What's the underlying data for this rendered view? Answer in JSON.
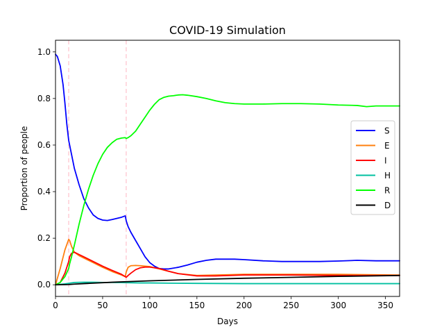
{
  "chart_data": {
    "type": "line",
    "title": "COVID-19 Simulation",
    "xlabel": "Days",
    "ylabel": "Proportion of people",
    "xlim": [
      0,
      365
    ],
    "ylim": [
      -0.05,
      1.05
    ],
    "xticks": [
      0,
      50,
      100,
      150,
      200,
      250,
      300,
      350
    ],
    "xtick_labels": [
      "0",
      "50",
      "100",
      "150",
      "200",
      "250",
      "300",
      "350"
    ],
    "yticks": [
      0.0,
      0.2,
      0.4,
      0.6,
      0.8,
      1.0
    ],
    "ytick_labels": [
      "0.0",
      "0.2",
      "0.4",
      "0.6",
      "0.8",
      "1.0"
    ],
    "grid": false,
    "legend_position": "right",
    "vlines": [
      {
        "x": 14,
        "style": "dashed",
        "color": "#ffc0cb"
      },
      {
        "x": 75,
        "style": "dashed",
        "color": "#ffc0cb"
      }
    ],
    "series": [
      {
        "name": "S",
        "color": "#0000ff",
        "x": [
          0,
          2,
          5,
          8,
          10,
          12,
          14,
          15,
          18,
          20,
          25,
          30,
          35,
          40,
          45,
          50,
          55,
          60,
          65,
          70,
          74,
          75,
          77,
          80,
          85,
          90,
          95,
          100,
          105,
          110,
          115,
          120,
          130,
          140,
          150,
          160,
          170,
          180,
          190,
          200,
          220,
          240,
          260,
          280,
          300,
          320,
          340,
          350,
          365
        ],
        "y": [
          0.99,
          0.98,
          0.94,
          0.86,
          0.78,
          0.69,
          0.62,
          0.6,
          0.54,
          0.5,
          0.43,
          0.37,
          0.33,
          0.3,
          0.285,
          0.278,
          0.276,
          0.28,
          0.285,
          0.29,
          0.296,
          0.275,
          0.25,
          0.225,
          0.19,
          0.155,
          0.12,
          0.095,
          0.08,
          0.07,
          0.068,
          0.068,
          0.075,
          0.085,
          0.097,
          0.105,
          0.11,
          0.11,
          0.11,
          0.108,
          0.103,
          0.1,
          0.1,
          0.1,
          0.102,
          0.105,
          0.103,
          0.103,
          0.103
        ]
      },
      {
        "name": "E",
        "color": "#ff7f0e",
        "x": [
          0,
          5,
          10,
          14,
          15,
          17,
          20,
          25,
          30,
          40,
          50,
          60,
          70,
          74,
          75,
          77,
          80,
          85,
          90,
          100,
          110,
          120,
          130,
          150,
          170,
          200,
          250,
          300,
          365
        ],
        "y": [
          0.0,
          0.07,
          0.15,
          0.195,
          0.19,
          0.165,
          0.14,
          0.125,
          0.115,
          0.095,
          0.075,
          0.057,
          0.042,
          0.035,
          0.055,
          0.075,
          0.082,
          0.083,
          0.082,
          0.078,
          0.068,
          0.058,
          0.048,
          0.04,
          0.042,
          0.045,
          0.045,
          0.045,
          0.042
        ]
      },
      {
        "name": "I",
        "color": "#ff0000",
        "x": [
          0,
          5,
          10,
          14,
          15,
          17,
          20,
          25,
          30,
          40,
          50,
          60,
          70,
          74,
          75,
          77,
          80,
          85,
          90,
          95,
          100,
          110,
          120,
          130,
          150,
          170,
          200,
          250,
          300,
          365
        ],
        "y": [
          0.0,
          0.01,
          0.05,
          0.1,
          0.12,
          0.135,
          0.14,
          0.13,
          0.12,
          0.1,
          0.08,
          0.062,
          0.045,
          0.035,
          0.032,
          0.04,
          0.05,
          0.065,
          0.073,
          0.076,
          0.076,
          0.07,
          0.058,
          0.048,
          0.038,
          0.038,
          0.042,
          0.042,
          0.04,
          0.04
        ]
      },
      {
        "name": "H",
        "color": "#00c0a0",
        "x": [
          0,
          10,
          15,
          20,
          30,
          40,
          50,
          60,
          75,
          90,
          100,
          120,
          150,
          200,
          250,
          300,
          365
        ],
        "y": [
          0.0,
          0.004,
          0.007,
          0.01,
          0.011,
          0.011,
          0.01,
          0.01,
          0.009,
          0.008,
          0.008,
          0.007,
          0.006,
          0.005,
          0.005,
          0.005,
          0.005
        ]
      },
      {
        "name": "R",
        "color": "#00ff00",
        "x": [
          0,
          5,
          10,
          14,
          15,
          17,
          20,
          25,
          30,
          35,
          40,
          45,
          50,
          55,
          60,
          65,
          70,
          74,
          75,
          77,
          80,
          85,
          90,
          95,
          100,
          105,
          110,
          115,
          120,
          125,
          130,
          135,
          140,
          150,
          160,
          170,
          180,
          190,
          200,
          220,
          240,
          260,
          280,
          300,
          320,
          330,
          340,
          365
        ],
        "y": [
          0.0,
          0.01,
          0.035,
          0.07,
          0.09,
          0.12,
          0.17,
          0.26,
          0.34,
          0.41,
          0.47,
          0.52,
          0.56,
          0.59,
          0.61,
          0.625,
          0.63,
          0.632,
          0.628,
          0.632,
          0.64,
          0.66,
          0.69,
          0.72,
          0.75,
          0.775,
          0.795,
          0.805,
          0.81,
          0.812,
          0.815,
          0.816,
          0.814,
          0.808,
          0.8,
          0.79,
          0.782,
          0.778,
          0.776,
          0.776,
          0.778,
          0.778,
          0.776,
          0.772,
          0.77,
          0.765,
          0.768,
          0.768
        ]
      },
      {
        "name": "D",
        "color": "#000000",
        "x": [
          0,
          14,
          20,
          40,
          60,
          80,
          100,
          150,
          200,
          250,
          300,
          365
        ],
        "y": [
          0.0,
          0.001,
          0.003,
          0.007,
          0.011,
          0.014,
          0.017,
          0.023,
          0.028,
          0.032,
          0.036,
          0.04
        ]
      }
    ]
  }
}
